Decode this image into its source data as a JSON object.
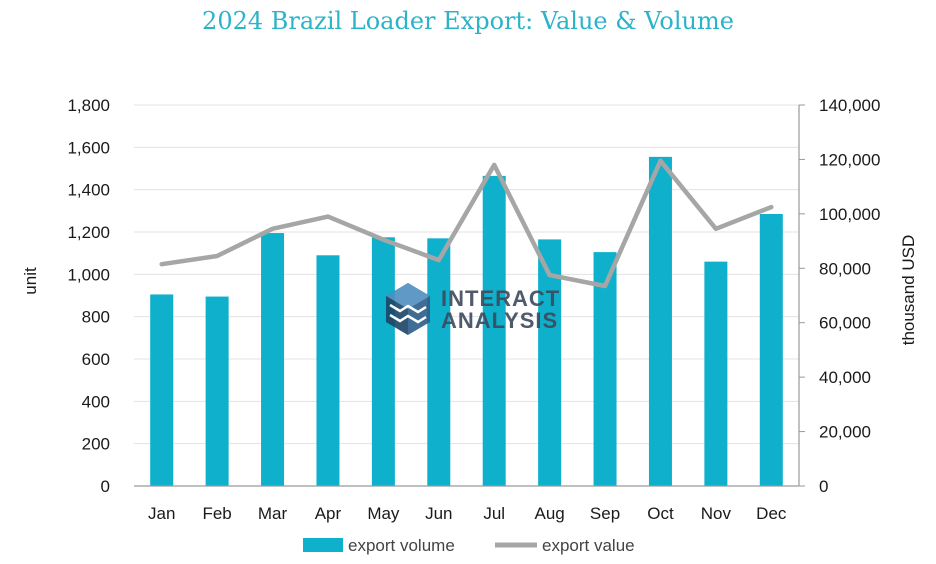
{
  "chart_data": {
    "type": "bar",
    "title": "2024 Brazil Loader Export: Value & Volume",
    "categories": [
      "Jan",
      "Feb",
      "Mar",
      "Apr",
      "May",
      "Jun",
      "Jul",
      "Aug",
      "Sep",
      "Oct",
      "Nov",
      "Dec"
    ],
    "ylabel_left": "unit",
    "ylabel_right": "thousand USD",
    "ylim_left": [
      0,
      1800
    ],
    "ylim_right": [
      0,
      140000
    ],
    "yticks_left": [
      "0",
      "200",
      "400",
      "600",
      "800",
      "1,000",
      "1,200",
      "1,400",
      "1,600",
      "1,800"
    ],
    "yticks_right": [
      "0",
      "20,000",
      "40,000",
      "60,000",
      "80,000",
      "100,000",
      "120,000",
      "140,000"
    ],
    "grid": true,
    "legend_position": "bottom",
    "series": [
      {
        "name": "export volume",
        "type": "bar",
        "axis": "left",
        "color": "#0fb0cc",
        "values": [
          905,
          895,
          1195,
          1090,
          1175,
          1170,
          1465,
          1165,
          1105,
          1555,
          1060,
          1285
        ]
      },
      {
        "name": "export value",
        "type": "line",
        "axis": "right",
        "color": "#a6a6a6",
        "values": [
          81500,
          84500,
          94500,
          99000,
          90500,
          83000,
          118000,
          77500,
          73500,
          119500,
          94500,
          102500
        ]
      }
    ]
  },
  "watermark": {
    "line1": "INTERACT",
    "line2": "ANALYSIS",
    "logo_icon": "hexagon-cube-icon"
  }
}
